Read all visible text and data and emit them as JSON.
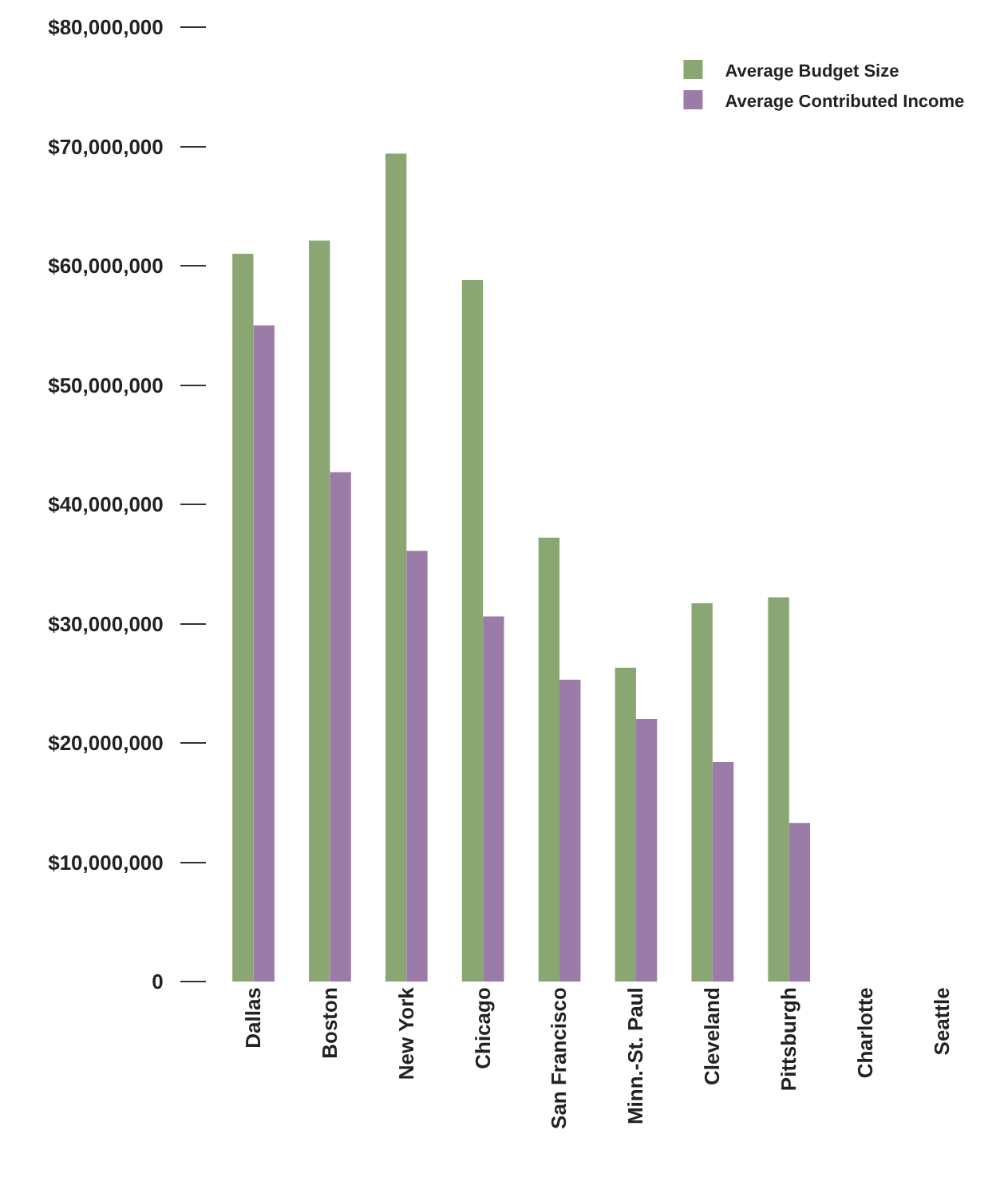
{
  "chart_data": {
    "type": "bar",
    "categories": [
      "Dallas",
      "Boston",
      "New York",
      "Chicago",
      "San Francisco",
      "Minn.-St. Paul",
      "Cleveland",
      "Pittsburgh",
      "Charlotte",
      "Seattle"
    ],
    "series": [
      {
        "name": "Average Budget Size",
        "color": "#8aa673",
        "values": [
          61000000,
          62100000,
          69400000,
          58800000,
          37200000,
          26300000,
          31700000,
          32200000,
          null,
          null
        ]
      },
      {
        "name": "Average Contributed Income",
        "color": "#9b7ba7",
        "values": [
          55000000,
          42700000,
          36100000,
          30600000,
          25300000,
          22000000,
          18400000,
          13300000,
          null,
          null
        ]
      }
    ],
    "ylim": [
      0,
      80000000
    ],
    "yticks": [
      {
        "value": 0,
        "label": "0"
      },
      {
        "value": 10000000,
        "label": "$10,000,000"
      },
      {
        "value": 20000000,
        "label": "$20,000,000"
      },
      {
        "value": 30000000,
        "label": "$30,000,000"
      },
      {
        "value": 40000000,
        "label": "$40,000,000"
      },
      {
        "value": 50000000,
        "label": "$50,000,000"
      },
      {
        "value": 60000000,
        "label": "$60,000,000"
      },
      {
        "value": 70000000,
        "label": "$70,000,000"
      },
      {
        "value": 80000000,
        "label": "$80,000,000"
      }
    ],
    "legend": "top right"
  }
}
